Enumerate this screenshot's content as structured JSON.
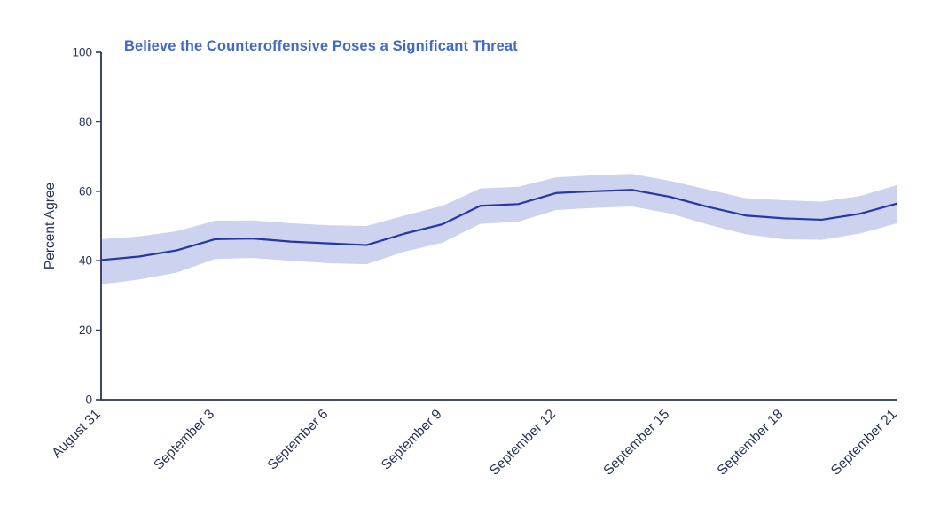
{
  "chart_data": {
    "type": "line",
    "title": "Believe the Counteroffensive Poses a Significant Threat",
    "xlabel": "",
    "ylabel": "Percent Agree",
    "ylim": [
      0,
      100
    ],
    "yticks": [
      0,
      20,
      40,
      60,
      80,
      100
    ],
    "grid": "off",
    "legend": "none",
    "x": [
      "August 31",
      "September 1",
      "September 2",
      "September 3",
      "September 4",
      "September 5",
      "September 6",
      "September 7",
      "September 8",
      "September 9",
      "September 10",
      "September 11",
      "September 12",
      "September 13",
      "September 14",
      "September 15",
      "September 16",
      "September 17",
      "September 18",
      "September 19",
      "September 20",
      "September 21"
    ],
    "x_tick_labels": [
      "August 31",
      "September 3",
      "September 6",
      "September 9",
      "September 12",
      "September 15",
      "September 18",
      "September 21"
    ],
    "x_tick_every": 3,
    "series": [
      {
        "name": "Percent Agree",
        "values": [
          40.2,
          41.2,
          43.0,
          46.2,
          46.4,
          45.5,
          45.0,
          44.5,
          47.8,
          50.5,
          55.8,
          56.3,
          59.5,
          60.0,
          60.4,
          58.4,
          55.5,
          53.0,
          52.2,
          51.8,
          53.5,
          56.5
        ]
      }
    ],
    "band": {
      "name": "confidence-interval",
      "upper": [
        46.2,
        47.0,
        48.5,
        51.5,
        51.6,
        50.8,
        50.2,
        50.0,
        53.0,
        55.8,
        60.8,
        61.3,
        64.0,
        64.6,
        65.0,
        63.0,
        60.5,
        58.0,
        57.4,
        57.0,
        58.6,
        61.8
      ],
      "lower": [
        33.2,
        34.6,
        36.6,
        40.5,
        40.8,
        40.0,
        39.3,
        39.0,
        42.6,
        45.2,
        50.6,
        51.2,
        54.6,
        55.2,
        55.6,
        53.6,
        50.4,
        47.6,
        46.2,
        46.0,
        47.8,
        50.8
      ]
    },
    "colors": {
      "title": "#4169c8",
      "line": "#2638a8",
      "band": "#cdd2ee",
      "axis": "#2a3455",
      "tick_label": "#2a3455"
    }
  }
}
